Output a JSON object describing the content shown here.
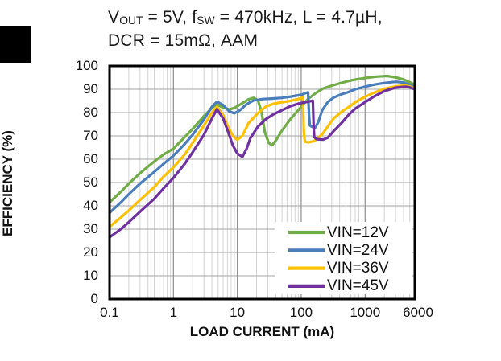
{
  "title": {
    "line1_parts": [
      {
        "text": "V"
      },
      {
        "text": "OUT",
        "sub": true
      },
      {
        "text": " = 5V, f"
      },
      {
        "text": "SW",
        "sub": true
      },
      {
        "text": " = 470kHz, L = 4.7µH,"
      }
    ],
    "line2": "DCR = 15mΩ, AAM"
  },
  "y_axis": {
    "label": "EFFICIENCY (%)",
    "min": 0,
    "max": 100,
    "tick_values": [
      100,
      90,
      80,
      70,
      60,
      50,
      40,
      30,
      20,
      10,
      0
    ]
  },
  "x_axis": {
    "label": "LOAD CURRENT (mA)",
    "scale": "log",
    "min": 0.1,
    "max": 6000,
    "tick_labels": [
      "0.1",
      "1",
      "10",
      "100",
      "1000",
      "6000"
    ],
    "tick_values": [
      0.1,
      1,
      10,
      100,
      1000,
      6000
    ]
  },
  "legend": {
    "position": "bottom-right",
    "entries": [
      {
        "label": "VIN=12V",
        "color": "#70ad47"
      },
      {
        "label": "VIN=24V",
        "color": "#4a7ebb"
      },
      {
        "label": "VIN=36V",
        "color": "#ffc000"
      },
      {
        "label": "VIN=45V",
        "color": "#7030a0"
      }
    ]
  },
  "grid": {
    "minor_color": "#d4d4d4",
    "major_color": "#8c8c8c",
    "horizontal_color": "#a6a6a6",
    "border_color": "#000000"
  },
  "chart_data": {
    "type": "line",
    "title": "VOUT = 5V, fSW = 470kHz, L = 4.7µH, DCR = 15mΩ, AAM",
    "xlabel": "LOAD CURRENT (mA)",
    "ylabel": "EFFICIENCY (%)",
    "x_scale": "log",
    "xlim": [
      0.1,
      6000
    ],
    "ylim": [
      0,
      100
    ],
    "grid": true,
    "legend_position": "lower right",
    "series": [
      {
        "name": "VIN=12V",
        "color": "#70ad47",
        "points": [
          [
            0.1,
            41.5
          ],
          [
            0.15,
            46
          ],
          [
            0.2,
            49.5
          ],
          [
            0.3,
            54
          ],
          [
            0.5,
            59
          ],
          [
            0.7,
            62
          ],
          [
            1,
            64.5
          ],
          [
            1.5,
            69.5
          ],
          [
            2,
            73
          ],
          [
            3,
            78.5
          ],
          [
            4,
            82
          ],
          [
            4.7,
            83.5
          ],
          [
            6,
            82.2
          ],
          [
            7.5,
            81.3
          ],
          [
            9,
            82
          ],
          [
            12,
            84
          ],
          [
            15,
            85.7
          ],
          [
            18,
            86.3
          ],
          [
            21,
            85.3
          ],
          [
            24,
            80
          ],
          [
            27,
            71.5
          ],
          [
            31,
            67
          ],
          [
            35,
            66
          ],
          [
            40,
            68
          ],
          [
            50,
            72.3
          ],
          [
            67,
            77
          ],
          [
            90,
            81
          ],
          [
            110,
            83.8
          ],
          [
            130,
            86
          ],
          [
            170,
            88.4
          ],
          [
            220,
            90.3
          ],
          [
            300,
            91.5
          ],
          [
            430,
            92.8
          ],
          [
            600,
            93.8
          ],
          [
            800,
            94.4
          ],
          [
            1000,
            94.8
          ],
          [
            1500,
            95.4
          ],
          [
            2200,
            95.7
          ],
          [
            3000,
            95.1
          ],
          [
            4000,
            94.2
          ],
          [
            5000,
            93
          ],
          [
            6000,
            92
          ]
        ]
      },
      {
        "name": "VIN=24V",
        "color": "#4a7ebb",
        "points": [
          [
            0.1,
            37
          ],
          [
            0.15,
            41.5
          ],
          [
            0.2,
            45
          ],
          [
            0.3,
            49.5
          ],
          [
            0.5,
            54.5
          ],
          [
            0.7,
            58
          ],
          [
            1,
            61.5
          ],
          [
            1.5,
            66.5
          ],
          [
            2,
            70.5
          ],
          [
            3,
            77
          ],
          [
            4,
            82.5
          ],
          [
            4.8,
            84.7
          ],
          [
            6,
            83.2
          ],
          [
            7.5,
            80.5
          ],
          [
            9,
            79.7
          ],
          [
            11,
            81
          ],
          [
            14,
            83.6
          ],
          [
            18,
            85.2
          ],
          [
            25,
            85.8
          ],
          [
            35,
            86
          ],
          [
            50,
            86.3
          ],
          [
            70,
            86.9
          ],
          [
            90,
            87.4
          ],
          [
            105,
            87.8
          ],
          [
            118,
            88.4
          ],
          [
            128,
            88.7
          ],
          [
            132,
            80
          ],
          [
            136,
            74.5
          ],
          [
            150,
            73.8
          ],
          [
            165,
            73.5
          ],
          [
            185,
            76
          ],
          [
            213,
            81
          ],
          [
            260,
            84.5
          ],
          [
            320,
            86.4
          ],
          [
            430,
            87.9
          ],
          [
            550,
            88.8
          ],
          [
            700,
            90
          ],
          [
            1000,
            91.1
          ],
          [
            1400,
            92
          ],
          [
            2000,
            92.7
          ],
          [
            3000,
            93.2
          ],
          [
            4000,
            92.9
          ],
          [
            5000,
            91.9
          ],
          [
            6000,
            90.9
          ]
        ]
      },
      {
        "name": "VIN=36V",
        "color": "#ffc000",
        "points": [
          [
            0.1,
            31
          ],
          [
            0.15,
            35
          ],
          [
            0.2,
            38
          ],
          [
            0.3,
            42.5
          ],
          [
            0.5,
            48
          ],
          [
            0.7,
            52.5
          ],
          [
            1,
            56.5
          ],
          [
            1.5,
            62
          ],
          [
            2,
            67
          ],
          [
            3,
            74.5
          ],
          [
            4,
            80
          ],
          [
            4.8,
            82.5
          ],
          [
            6,
            79
          ],
          [
            7,
            74.5
          ],
          [
            8.5,
            70
          ],
          [
            10,
            68.3
          ],
          [
            12,
            70
          ],
          [
            15,
            75.5
          ],
          [
            21,
            79.8
          ],
          [
            28,
            82.6
          ],
          [
            37,
            83.8
          ],
          [
            50,
            84.4
          ],
          [
            67,
            85
          ],
          [
            90,
            85.8
          ],
          [
            100,
            86.2
          ],
          [
            106,
            86.6
          ],
          [
            110,
            72
          ],
          [
            114,
            67.5
          ],
          [
            130,
            67.2
          ],
          [
            160,
            67.8
          ],
          [
            213,
            70.7
          ],
          [
            260,
            74
          ],
          [
            320,
            77.4
          ],
          [
            430,
            80.4
          ],
          [
            550,
            82.3
          ],
          [
            700,
            84.4
          ],
          [
            1000,
            86.8
          ],
          [
            1400,
            88.6
          ],
          [
            2000,
            90.2
          ],
          [
            3000,
            91.2
          ],
          [
            4200,
            91.6
          ],
          [
            5000,
            91.2
          ],
          [
            6000,
            90.4
          ]
        ]
      },
      {
        "name": "VIN=45V",
        "color": "#7030a0",
        "points": [
          [
            0.1,
            26.5
          ],
          [
            0.15,
            30
          ],
          [
            0.2,
            33
          ],
          [
            0.3,
            37.5
          ],
          [
            0.5,
            43
          ],
          [
            0.7,
            47.5
          ],
          [
            1,
            52
          ],
          [
            1.5,
            58
          ],
          [
            2,
            63
          ],
          [
            3,
            70.5
          ],
          [
            4,
            77.5
          ],
          [
            4.8,
            81.5
          ],
          [
            6,
            77.5
          ],
          [
            7,
            72.5
          ],
          [
            8.5,
            66
          ],
          [
            10,
            62.5
          ],
          [
            12,
            61
          ],
          [
            14,
            64.5
          ],
          [
            16,
            69
          ],
          [
            21,
            74
          ],
          [
            28,
            77.2
          ],
          [
            37,
            79.3
          ],
          [
            50,
            81
          ],
          [
            67,
            82.7
          ],
          [
            90,
            83.8
          ],
          [
            115,
            84.4
          ],
          [
            140,
            84.9
          ],
          [
            152,
            85.1
          ],
          [
            156,
            75
          ],
          [
            160,
            69.5
          ],
          [
            175,
            68.6
          ],
          [
            220,
            68.4
          ],
          [
            260,
            69.2
          ],
          [
            320,
            72
          ],
          [
            430,
            75.6
          ],
          [
            550,
            79
          ],
          [
            700,
            81.7
          ],
          [
            1000,
            84.5
          ],
          [
            1400,
            87
          ],
          [
            2000,
            89.2
          ],
          [
            3000,
            90.7
          ],
          [
            4300,
            91.1
          ],
          [
            5000,
            90.8
          ],
          [
            6000,
            90
          ]
        ]
      }
    ]
  }
}
